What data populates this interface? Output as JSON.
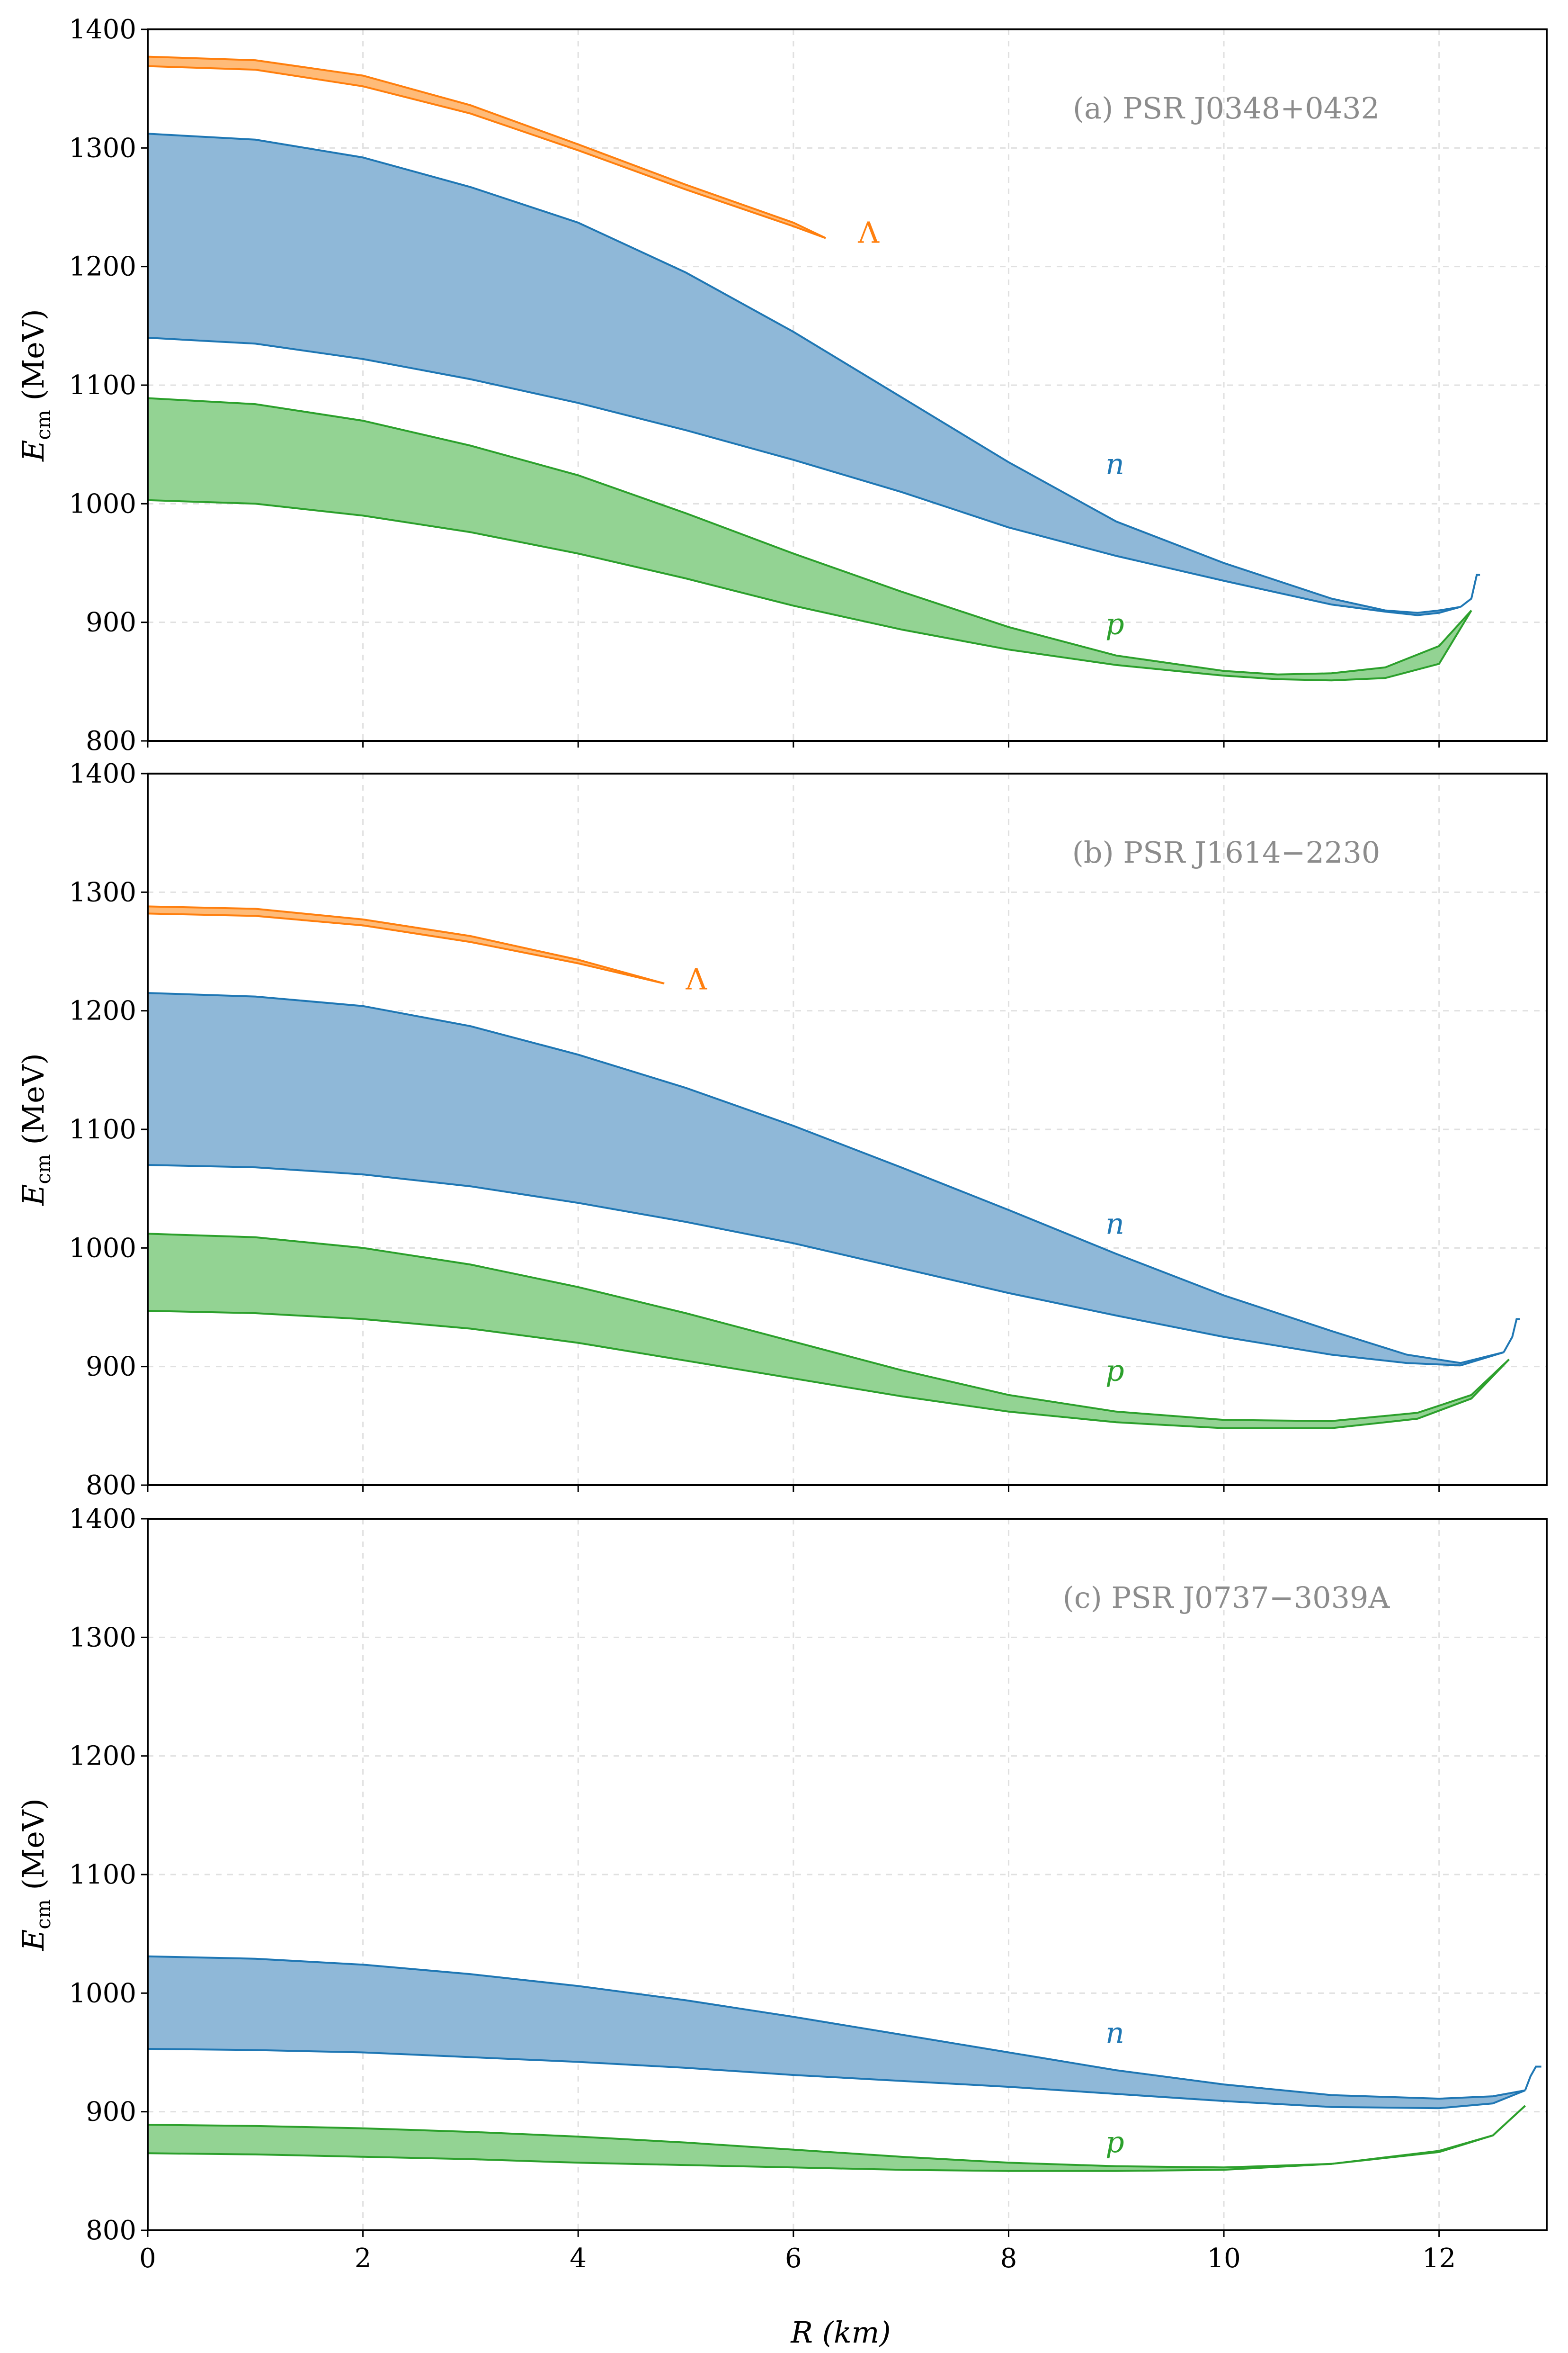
{
  "figure": {
    "xlabel": "R (km)",
    "ylabel_symbol": "E",
    "ylabel_subscript": "cm",
    "ylabel_unit": "(MeV)"
  },
  "colors": {
    "lambda": "#ff7f0e",
    "lambda_fill": "#ffbb78",
    "neutron": "#1f77b4",
    "neutron_fill": "#8fb8d8",
    "proton": "#2ca02c",
    "proton_fill": "#93d393",
    "grid": "#e0e0e0",
    "title_gray": "#8c8c8c"
  },
  "chart_data": [
    {
      "type": "area",
      "title": "(a) PSR J0348+0432",
      "xlabel": "",
      "ylabel": "Ecm (MeV)",
      "xlim": [
        0,
        13
      ],
      "ylim": [
        800,
        1400
      ],
      "xticks": [
        0,
        2,
        4,
        6,
        8,
        10,
        12
      ],
      "yticks": [
        800,
        900,
        1000,
        1100,
        1200,
        1300,
        1400
      ],
      "grid": true,
      "series": [
        {
          "name": "Λ",
          "color_key": "lambda",
          "fill_key": "lambda_fill",
          "label_at": [
            6.6,
            1220
          ],
          "x": [
            0,
            1,
            2,
            3,
            4,
            5,
            6,
            6.3
          ],
          "upper": [
            1377,
            1374,
            1361,
            1336,
            1303,
            1269,
            1237,
            1224
          ],
          "lower": [
            1369,
            1366,
            1352,
            1329,
            1298,
            1265,
            1234,
            1224
          ],
          "close": false
        },
        {
          "name": "n",
          "color_key": "neutron",
          "fill_key": "neutron_fill",
          "label_at": [
            8.9,
            1025
          ],
          "x": [
            0,
            1,
            2,
            3,
            4,
            5,
            6,
            7,
            8,
            9,
            10,
            11,
            11.5,
            11.8,
            12.0,
            12.2
          ],
          "upper": [
            1312,
            1307,
            1292,
            1267,
            1237,
            1195,
            1145,
            1090,
            1035,
            985,
            950,
            920,
            910,
            908,
            910,
            913
          ],
          "lower": [
            1140,
            1135,
            1122,
            1105,
            1085,
            1062,
            1037,
            1010,
            980,
            956,
            935,
            915,
            909,
            906,
            908,
            913
          ],
          "close": true,
          "spike": [
            [
              12.2,
              913
            ],
            [
              12.3,
              920
            ],
            [
              12.35,
              940
            ],
            [
              12.38,
              940
            ]
          ]
        },
        {
          "name": "p",
          "color_key": "proton",
          "fill_key": "proton_fill",
          "label_at": [
            8.9,
            890
          ],
          "x": [
            0,
            1,
            2,
            3,
            4,
            5,
            6,
            7,
            8,
            9,
            10,
            10.5,
            11,
            11.5,
            12.0,
            12.3
          ],
          "upper": [
            1089,
            1084,
            1070,
            1049,
            1024,
            992,
            958,
            926,
            896,
            872,
            859,
            856,
            857,
            862,
            880,
            910
          ],
          "lower": [
            1003,
            1000,
            990,
            976,
            958,
            937,
            914,
            894,
            877,
            864,
            855,
            852,
            851,
            853,
            865,
            910
          ],
          "close": true
        }
      ]
    },
    {
      "type": "area",
      "title": "(b) PSR J1614−2230",
      "xlabel": "",
      "ylabel": "Ecm (MeV)",
      "xlim": [
        0,
        13
      ],
      "ylim": [
        800,
        1400
      ],
      "xticks": [
        0,
        2,
        4,
        6,
        8,
        10,
        12
      ],
      "yticks": [
        800,
        900,
        1000,
        1100,
        1200,
        1300,
        1400
      ],
      "grid": true,
      "series": [
        {
          "name": "Λ",
          "color_key": "lambda",
          "fill_key": "lambda_fill",
          "label_at": [
            5.0,
            1218
          ],
          "x": [
            0,
            1,
            2,
            3,
            4,
            4.8
          ],
          "upper": [
            1288,
            1286,
            1277,
            1263,
            1243,
            1223
          ],
          "lower": [
            1282,
            1280,
            1272,
            1258,
            1240,
            1223
          ],
          "close": false
        },
        {
          "name": "n",
          "color_key": "neutron",
          "fill_key": "neutron_fill",
          "label_at": [
            8.9,
            1012
          ],
          "x": [
            0,
            1,
            2,
            3,
            4,
            5,
            6,
            7,
            8,
            9,
            10,
            11,
            11.7,
            12.2,
            12.6
          ],
          "upper": [
            1215,
            1212,
            1204,
            1187,
            1163,
            1135,
            1103,
            1068,
            1032,
            995,
            960,
            930,
            910,
            903,
            912
          ],
          "lower": [
            1070,
            1068,
            1062,
            1052,
            1038,
            1022,
            1004,
            983,
            962,
            943,
            925,
            910,
            903,
            901,
            912
          ],
          "close": true,
          "spike": [
            [
              12.6,
              912
            ],
            [
              12.68,
              925
            ],
            [
              12.72,
              940
            ],
            [
              12.75,
              940
            ]
          ]
        },
        {
          "name": "p",
          "color_key": "proton",
          "fill_key": "proton_fill",
          "label_at": [
            8.9,
            888
          ],
          "x": [
            0,
            1,
            2,
            3,
            4,
            5,
            6,
            7,
            8,
            9,
            10,
            11,
            11.8,
            12.3,
            12.65
          ],
          "upper": [
            1012,
            1009,
            1000,
            986,
            967,
            945,
            921,
            897,
            876,
            862,
            855,
            854,
            861,
            876,
            906
          ],
          "lower": [
            947,
            945,
            940,
            932,
            920,
            905,
            890,
            875,
            862,
            853,
            848,
            848,
            856,
            873,
            906
          ],
          "close": true
        }
      ]
    },
    {
      "type": "area",
      "title": "(c) PSR J0737−3039A",
      "xlabel": "R (km)",
      "ylabel": "Ecm (MeV)",
      "xlim": [
        0,
        13
      ],
      "ylim": [
        800,
        1400
      ],
      "xticks": [
        0,
        2,
        4,
        6,
        8,
        10,
        12
      ],
      "yticks": [
        800,
        900,
        1000,
        1100,
        1200,
        1300,
        1400
      ],
      "grid": true,
      "series": [
        {
          "name": "n",
          "color_key": "neutron",
          "fill_key": "neutron_fill",
          "label_at": [
            8.9,
            958
          ],
          "x": [
            0,
            1,
            2,
            3,
            4,
            5,
            6,
            7,
            8,
            9,
            10,
            11,
            12,
            12.5,
            12.8
          ],
          "upper": [
            1031,
            1029,
            1024,
            1016,
            1006,
            994,
            980,
            965,
            950,
            935,
            923,
            914,
            911,
            913,
            918
          ],
          "lower": [
            953,
            952,
            950,
            946,
            942,
            937,
            931,
            926,
            921,
            915,
            909,
            904,
            903,
            907,
            918
          ],
          "close": true,
          "spike": [
            [
              12.8,
              918
            ],
            [
              12.85,
              930
            ],
            [
              12.9,
              938
            ],
            [
              12.95,
              938
            ]
          ]
        },
        {
          "name": "p",
          "color_key": "proton",
          "fill_key": "proton_fill",
          "label_at": [
            8.9,
            866
          ],
          "x": [
            0,
            1,
            2,
            3,
            4,
            5,
            6,
            7,
            8,
            9,
            10,
            11,
            12,
            12.5,
            12.8
          ],
          "upper": [
            889,
            888,
            886,
            883,
            879,
            874,
            868,
            862,
            857,
            854,
            853,
            856,
            867,
            880,
            905
          ],
          "lower": [
            865,
            864,
            862,
            860,
            857,
            855,
            853,
            851,
            850,
            850,
            851,
            856,
            866,
            880,
            905
          ],
          "close": true
        }
      ]
    }
  ]
}
